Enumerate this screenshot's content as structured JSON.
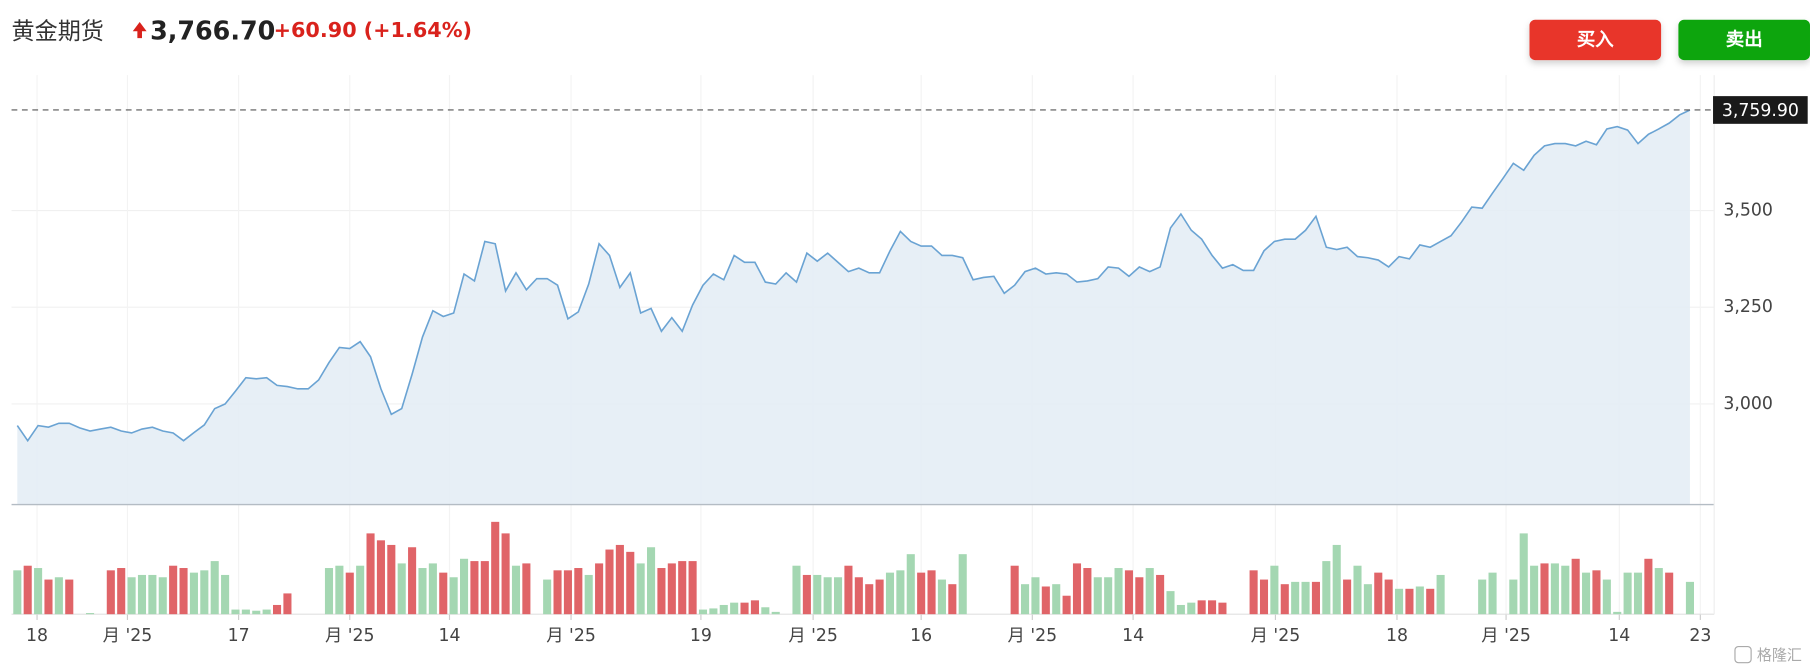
{
  "header": {
    "name": "黄金期货",
    "price": "3,766.70",
    "change": "+60.90",
    "change_pct": "(+1.64%)"
  },
  "buttons": {
    "buy": "买入",
    "sell": "卖出"
  },
  "watermark": "格隆汇",
  "chart_data": {
    "type": "line",
    "series": [
      {
        "color": "#6aa3d3",
        "fill": "#e3ecf5",
        "values": [
          2944,
          2905,
          2944,
          2940,
          2950,
          2950,
          2938,
          2930,
          2935,
          2940,
          2930,
          2925,
          2935,
          2940,
          2930,
          2925,
          2905,
          2926,
          2946,
          2988,
          3000,
          3033,
          3068,
          3065,
          3068,
          3048,
          3045,
          3039,
          3039,
          3062,
          3107,
          3146,
          3143,
          3161,
          3122,
          3039,
          2973,
          2988,
          3077,
          3173,
          3241,
          3226,
          3235,
          3336,
          3318,
          3420,
          3414,
          3292,
          3339,
          3295,
          3324,
          3324,
          3307,
          3220,
          3238,
          3310,
          3414,
          3384,
          3301,
          3339,
          3235,
          3247,
          3188,
          3223,
          3188,
          3256,
          3307,
          3336,
          3321,
          3384,
          3366,
          3366,
          3315,
          3310,
          3339,
          3315,
          3390,
          3369,
          3390,
          3366,
          3342,
          3351,
          3339,
          3339,
          3396,
          3446,
          3420,
          3408,
          3408,
          3384,
          3384,
          3378,
          3321,
          3327,
          3330,
          3286,
          3307,
          3342,
          3351,
          3336,
          3339,
          3336,
          3315,
          3318,
          3324,
          3354,
          3351,
          3330,
          3354,
          3342,
          3354,
          3455,
          3491,
          3449,
          3426,
          3384,
          3351,
          3360,
          3345,
          3345,
          3396,
          3420,
          3426,
          3426,
          3449,
          3485,
          3405,
          3399,
          3405,
          3381,
          3378,
          3372,
          3354,
          3381,
          3375,
          3411,
          3405,
          3420,
          3435,
          3470,
          3509,
          3506,
          3545,
          3583,
          3622,
          3604,
          3643,
          3667,
          3673,
          3673,
          3667,
          3679,
          3670,
          3711,
          3717,
          3708,
          3673,
          3697,
          3711,
          3726,
          3747,
          3759.9
        ]
      }
    ],
    "volume": {
      "values": [
        38,
        42,
        40,
        30,
        32,
        30,
        null,
        1,
        null,
        38,
        40,
        32,
        34,
        34,
        32,
        42,
        40,
        36,
        38,
        46,
        34,
        4,
        4,
        3,
        4,
        8,
        18,
        null,
        null,
        null,
        40,
        42,
        36,
        42,
        70,
        64,
        60,
        44,
        58,
        40,
        44,
        36,
        32,
        48,
        46,
        46,
        80,
        70,
        42,
        44,
        null,
        30,
        38,
        38,
        40,
        34,
        44,
        56,
        60,
        54,
        44,
        58,
        40,
        44,
        46,
        46,
        4,
        5,
        8,
        10,
        10,
        12,
        6,
        2,
        null,
        42,
        34,
        34,
        32,
        32,
        42,
        32,
        26,
        30,
        36,
        38,
        52,
        36,
        38,
        30,
        26,
        52,
        null,
        null,
        null,
        null,
        42,
        26,
        32,
        24,
        26,
        16,
        44,
        40,
        32,
        32,
        40,
        38,
        32,
        40,
        34,
        20,
        8,
        10,
        12,
        12,
        10,
        null,
        null,
        38,
        30,
        42,
        26,
        28,
        28,
        28,
        46,
        60,
        30,
        42,
        26,
        36,
        30,
        22,
        22,
        24,
        22,
        34,
        null,
        null,
        null,
        30,
        36,
        null,
        30,
        70,
        42,
        44,
        44,
        42,
        48,
        36,
        38,
        30,
        2,
        36,
        36,
        48,
        40,
        36,
        null,
        28
      ],
      "sides": [
        "g",
        "r",
        "g",
        "r",
        "g",
        "r",
        null,
        "g",
        null,
        "r",
        "r",
        "g",
        "g",
        "g",
        "g",
        "r",
        "r",
        "g",
        "g",
        "g",
        "g",
        "g",
        "g",
        "g",
        "g",
        "r",
        "r",
        null,
        null,
        null,
        "g",
        "g",
        "r",
        "g",
        "r",
        "r",
        "r",
        "g",
        "r",
        "g",
        "g",
        "r",
        "g",
        "g",
        "r",
        "r",
        "r",
        "r",
        "g",
        "r",
        null,
        "g",
        "r",
        "r",
        "r",
        "g",
        "r",
        "r",
        "r",
        "r",
        "g",
        "g",
        "r",
        "r",
        "r",
        "r",
        "g",
        "g",
        "g",
        "g",
        "r",
        "r",
        "g",
        "g",
        null,
        "g",
        "r",
        "g",
        "g",
        "g",
        "r",
        "r",
        "r",
        "r",
        "g",
        "g",
        "g",
        "r",
        "r",
        "g",
        "r",
        "g",
        null,
        null,
        null,
        null,
        "r",
        "g",
        "g",
        "r",
        "g",
        "r",
        "r",
        "r",
        "g",
        "g",
        "g",
        "r",
        "r",
        "g",
        "r",
        "g",
        "g",
        "g",
        "r",
        "r",
        "r",
        null,
        null,
        "r",
        "r",
        "g",
        "r",
        "g",
        "g",
        "r",
        "g",
        "g",
        "r",
        "g",
        "g",
        "r",
        "r",
        "g",
        "r",
        "g",
        "r",
        "g",
        null,
        null,
        null,
        "g",
        "g",
        null,
        "g",
        "g",
        "g",
        "r",
        "g",
        "g",
        "r",
        "g",
        "r",
        "g",
        "g",
        "g",
        "g",
        "r",
        "g",
        "r",
        null,
        "g"
      ],
      "palette": {
        "r": "#e06468",
        "g": "#a4d7b2"
      },
      "ylim": [
        0,
        80
      ]
    },
    "xlim": [
      0,
      162
    ],
    "xticks": [
      {
        "value": 1.9,
        "label": "18"
      },
      {
        "value": 10.6,
        "label": "月 '25"
      },
      {
        "value": 21.3,
        "label": "17"
      },
      {
        "value": 32,
        "label": "月 '25"
      },
      {
        "value": 41.6,
        "label": "14"
      },
      {
        "value": 53.3,
        "label": "月 '25"
      },
      {
        "value": 65.8,
        "label": "19"
      },
      {
        "value": 76.6,
        "label": "月 '25"
      },
      {
        "value": 87,
        "label": "16"
      },
      {
        "value": 97.7,
        "label": "月 '25"
      },
      {
        "value": 107.4,
        "label": "14"
      },
      {
        "value": 121.1,
        "label": "月 '25"
      },
      {
        "value": 132.8,
        "label": "18"
      },
      {
        "value": 143.3,
        "label": "月 '25"
      },
      {
        "value": 154.2,
        "label": "14"
      },
      {
        "value": 162,
        "label": "23"
      }
    ],
    "ylim": [
      2740,
      3850
    ],
    "yticks": [
      {
        "value": 3000,
        "label": "3,000"
      },
      {
        "value": 3250,
        "label": "3,250"
      },
      {
        "value": 3500,
        "label": "3,500"
      }
    ],
    "last_price": {
      "value": 3759.9,
      "label": "3,759.90"
    },
    "grid": true
  }
}
